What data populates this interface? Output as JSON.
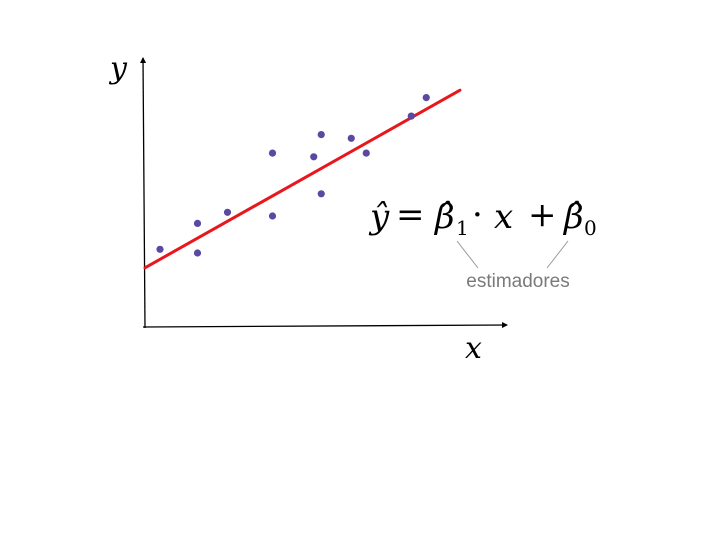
{
  "axes": {
    "x_label": "x",
    "y_label": "y"
  },
  "equation": {
    "y_hat": "ŷ",
    "equals": "=",
    "beta1": "β̂",
    "beta1_sub": "1",
    "dot": "·",
    "x": "x",
    "plus": "+",
    "beta0": "β̂",
    "beta0_sub": "0"
  },
  "annotation": {
    "label": "estimadores"
  },
  "colors": {
    "points": "#5b48a2",
    "line": "#e8171c",
    "axis": "#000000",
    "annotation": "#7a7a7a",
    "leader": "#9a9a9a"
  },
  "chart_data": {
    "type": "scatter",
    "points": [
      [
        0.4,
        2.1
      ],
      [
        1.4,
        2.8
      ],
      [
        1.4,
        2.0
      ],
      [
        2.2,
        3.1
      ],
      [
        3.4,
        4.7
      ],
      [
        3.4,
        3.0
      ],
      [
        4.5,
        4.6
      ],
      [
        4.7,
        5.2
      ],
      [
        4.7,
        3.6
      ],
      [
        5.5,
        5.1
      ],
      [
        5.9,
        4.7
      ],
      [
        7.1,
        5.7
      ],
      [
        7.5,
        6.2
      ]
    ],
    "fit_line": {
      "x": [
        0,
        8.4
      ],
      "y": [
        1.6,
        6.4
      ]
    }
  }
}
